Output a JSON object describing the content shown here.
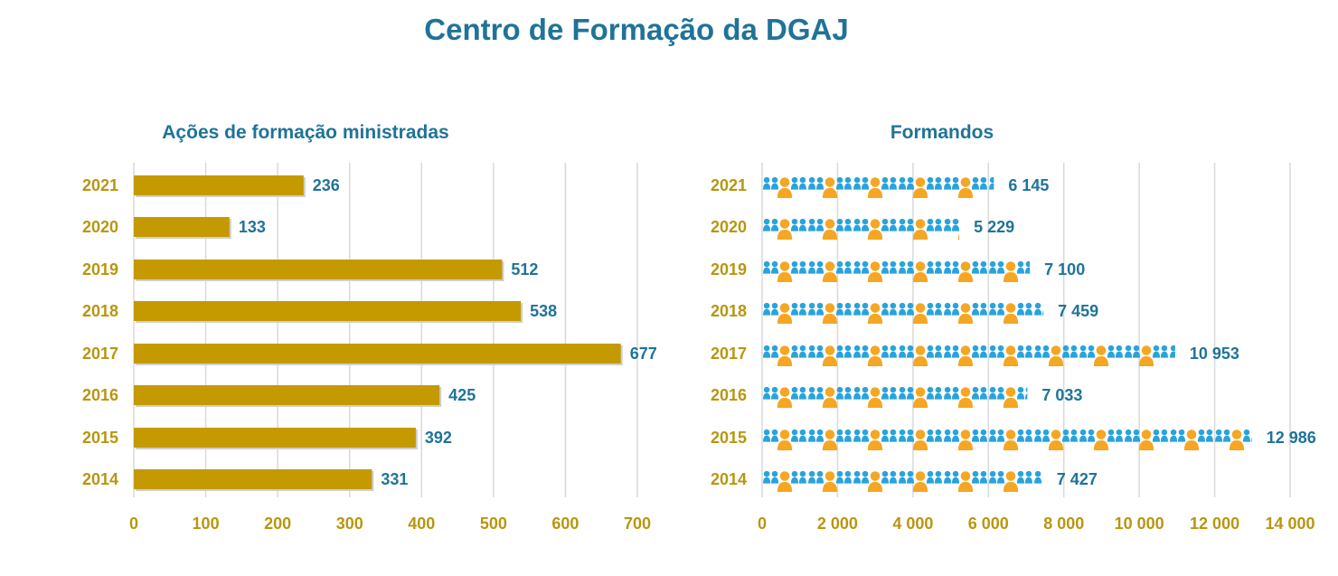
{
  "title": "Centro de Formação da DGAJ",
  "colors": {
    "title": "#1f7398",
    "bar": "#c49a00",
    "axis_text": "#b8960f",
    "person_blue": "#29a3dc",
    "person_orange": "#f5a623",
    "grid": "#d9d9d9"
  },
  "chart_data": [
    {
      "type": "bar",
      "orientation": "horizontal",
      "title": "Ações de formação ministradas",
      "categories": [
        "2021",
        "2020",
        "2019",
        "2018",
        "2017",
        "2016",
        "2015",
        "2014"
      ],
      "values": [
        236,
        133,
        512,
        538,
        677,
        425,
        392,
        331
      ],
      "value_labels": [
        "236",
        "133",
        "512",
        "538",
        "677",
        "425",
        "392",
        "331"
      ],
      "xlim": [
        0,
        700
      ],
      "xticks": [
        0,
        100,
        200,
        300,
        400,
        500,
        600,
        700
      ],
      "xtick_labels": [
        "0",
        "100",
        "200",
        "300",
        "400",
        "500",
        "600",
        "700"
      ],
      "grid": true
    },
    {
      "type": "bar",
      "orientation": "horizontal",
      "style": "pictogram",
      "icon": "people-group-icon",
      "title": "Formandos",
      "categories": [
        "2021",
        "2020",
        "2019",
        "2018",
        "2017",
        "2016",
        "2015",
        "2014"
      ],
      "values": [
        6145,
        5229,
        7100,
        7459,
        10953,
        7033,
        12986,
        7427
      ],
      "value_labels": [
        "6 145",
        "5 229",
        "7 100",
        "7 459",
        "10 953",
        "7 033",
        "12 986",
        "7 427"
      ],
      "xlim": [
        0,
        14000
      ],
      "xticks": [
        0,
        2000,
        4000,
        6000,
        8000,
        10000,
        12000,
        14000
      ],
      "xtick_labels": [
        "0",
        "2 000",
        "4 000",
        "6 000",
        "8 000",
        "10 000",
        "12 000",
        "14 000"
      ],
      "grid": true
    }
  ]
}
